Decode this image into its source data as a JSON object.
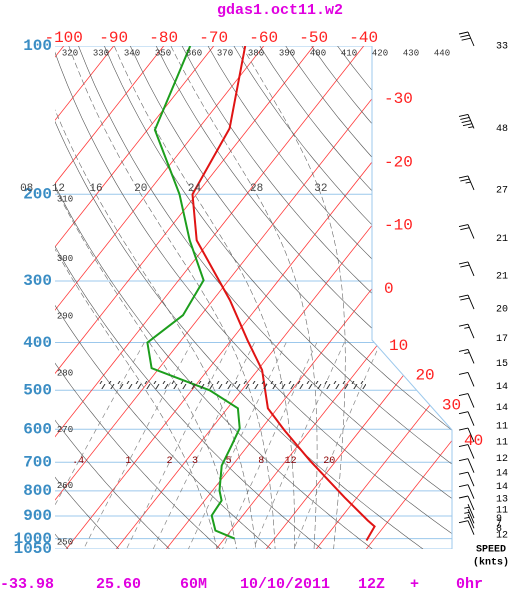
{
  "chart_data": {
    "type": "skewt",
    "title": "gdas1.oct11.w2",
    "log_y": true,
    "ylim": [
      1050,
      100
    ],
    "yticks": [
      100,
      200,
      300,
      400,
      500,
      600,
      700,
      800,
      900,
      1000,
      1050
    ],
    "isotherm_color": "#ff3a3a",
    "isotherm_ticks": [
      -100,
      -90,
      -80,
      -70,
      -60,
      -50,
      -40,
      -30,
      -20,
      -10,
      0,
      10,
      20,
      30,
      40
    ],
    "dry_adiabat_ticks": [
      250,
      260,
      270,
      280,
      290,
      300,
      310,
      320,
      330,
      340,
      350,
      360,
      370,
      380,
      390,
      400,
      410,
      420,
      430,
      440
    ],
    "moist_adiabat_ticks": [
      {
        "value": 8,
        "label": "08"
      },
      12,
      16,
      20,
      24,
      28,
      32
    ],
    "mixing_ratio_ticks": [
      {
        "value": 0.4,
        "label": ".4"
      },
      1,
      2,
      3,
      5,
      8,
      12,
      20
    ],
    "series": [
      {
        "color": "#e01414",
        "pressure": [
          100,
          147,
          200,
          248,
          328,
          396,
          455,
          544,
          603,
          694,
          825,
          919,
          945,
          1009
        ],
        "values": [
          -63.7,
          -53.8,
          -50.8,
          -42.7,
          -26.6,
          -16.7,
          -9.1,
          -1.9,
          4.9,
          14.7,
          27.5,
          35.8,
          38.1,
          38.7
        ]
      },
      {
        "color": "#1d9e1d",
        "pressure": [
          100,
          148,
          200,
          248,
          299,
          352,
          400,
          451,
          500,
          544,
          597,
          647,
          711,
          799,
          837,
          898,
          963,
          1000
        ],
        "values": [
          -74.7,
          -68.5,
          -53.4,
          -44.1,
          -35.0,
          -33.6,
          -36.4,
          -31.5,
          -16.4,
          -7.9,
          -4.4,
          -3.3,
          -2.1,
          1.4,
          3.4,
          3.8,
          6.9,
          12.0
        ]
      }
    ],
    "wind": {
      "label": "SPEED",
      "units": "(knts)",
      "pressure": [
        100,
        147,
        196,
        246,
        293,
        342,
        392,
        441,
        491,
        542,
        590,
        637,
        688,
        735,
        783,
        830,
        875,
        909,
        931,
        953,
        982
      ],
      "speeds": [
        33,
        48,
        27,
        21,
        21,
        20,
        17,
        15,
        14,
        14,
        11,
        11,
        12,
        14,
        14,
        13,
        11,
        9,
        7,
        8,
        12
      ]
    },
    "footer": [
      "-33.98",
      "25.60",
      "60M",
      "10/10/2011",
      "12Z",
      "+",
      "0hr"
    ]
  }
}
